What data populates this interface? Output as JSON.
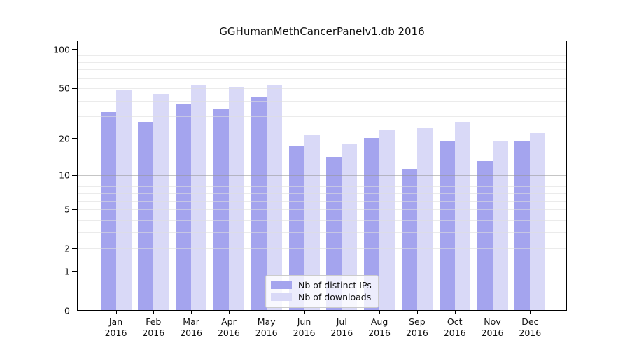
{
  "title": "GGHumanMethCancerPanelv1.db 2016",
  "chart_data": {
    "type": "bar",
    "title": "GGHumanMethCancerPanelv1.db 2016",
    "categories": [
      "Jan",
      "Feb",
      "Mar",
      "Apr",
      "May",
      "Jun",
      "Jul",
      "Aug",
      "Sep",
      "Oct",
      "Nov",
      "Dec"
    ],
    "category_year": "2016",
    "series": [
      {
        "name": "Nb of distinct IPs",
        "color": "#a4a4ee",
        "values": [
          32,
          27,
          37,
          34,
          42,
          17,
          14,
          20,
          11,
          19,
          13,
          19
        ]
      },
      {
        "name": "Nb of downloads",
        "color": "#d9d9f7",
        "values": [
          48,
          44,
          53,
          50,
          53,
          21,
          18,
          23,
          24,
          27,
          19,
          22
        ]
      }
    ],
    "xlabel": "",
    "ylabel": "",
    "yscale": "log1p",
    "ylim": [
      0,
      118
    ],
    "yticks": [
      0,
      1,
      2,
      5,
      10,
      20,
      50,
      100
    ],
    "minor_yticks": [
      3,
      4,
      6,
      7,
      8,
      9,
      30,
      40,
      60,
      70,
      80,
      90
    ],
    "decade_gridlines": [
      1,
      10,
      100
    ],
    "grid": true,
    "legend_position": "lower-center"
  },
  "colors": {
    "bar_distinct_ips": "#a4a4ee",
    "bar_downloads": "#d9d9f7",
    "axis": "#000000"
  }
}
